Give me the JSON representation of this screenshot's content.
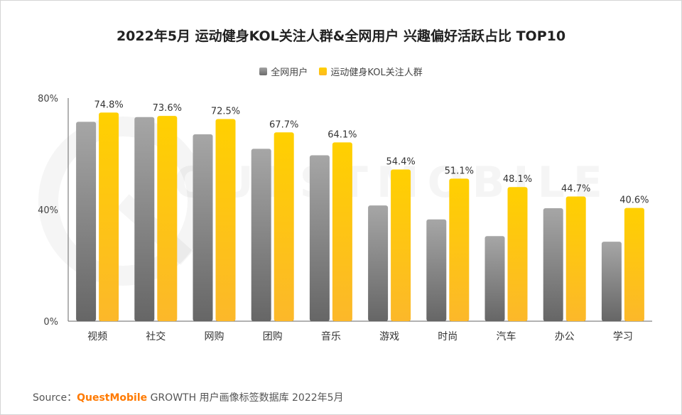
{
  "chart_data": {
    "type": "bar",
    "title": "2022年5月 运动健身KOL关注人群&全网用户 兴趣偏好活跃占比 TOP10",
    "categories": [
      "视频",
      "社交",
      "网购",
      "团购",
      "音乐",
      "游戏",
      "时尚",
      "汽车",
      "办公",
      "学习"
    ],
    "series": [
      {
        "name": "全网用户",
        "values": [
          71.5,
          73.2,
          67.0,
          61.8,
          59.5,
          41.5,
          36.5,
          30.5,
          40.5,
          28.5
        ],
        "color": "#8a8a8a"
      },
      {
        "name": "运动健身KOL关注人群",
        "values": [
          74.8,
          73.6,
          72.5,
          67.7,
          64.1,
          54.4,
          51.1,
          48.1,
          44.7,
          40.6
        ],
        "color": "#ffc107"
      }
    ],
    "data_labels": [
      "74.8%",
      "73.6%",
      "72.5%",
      "67.7%",
      "64.1%",
      "54.4%",
      "51.1%",
      "48.1%",
      "44.7%",
      "40.6%"
    ],
    "yticks": [
      "0%",
      "40%",
      "80%"
    ],
    "ylim": [
      0,
      80
    ],
    "grid": false,
    "legend_position": "top-center",
    "xlabel": "",
    "ylabel": ""
  },
  "source": {
    "prefix": "Source：",
    "brand_quest": "Quest",
    "brand_mobile": "Mobile",
    "rest": " GROWTH 用户画像标签数据库 2022年5月"
  },
  "watermark": {
    "text": "QUESTMOBILE"
  }
}
